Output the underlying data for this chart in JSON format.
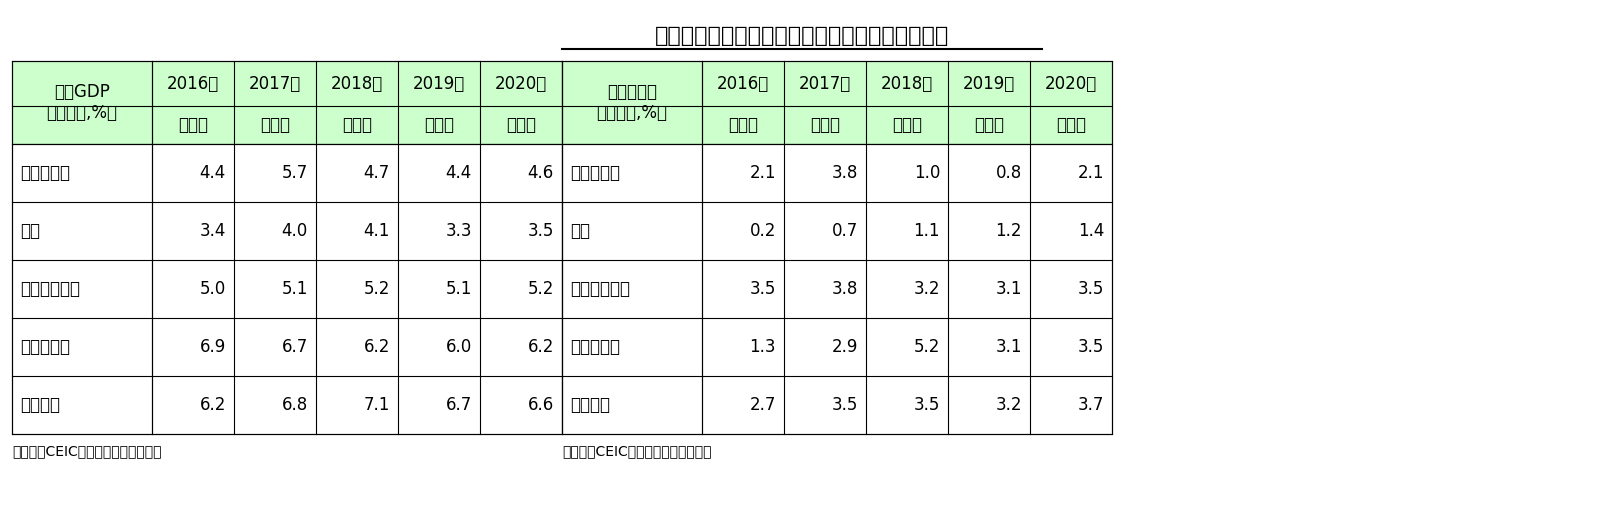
{
  "title": "東南アジア５カ国の成長率とインフレ率の見通し",
  "table1_header_col0": "実質GDP\n（前年比,%）",
  "table1_subheader": [
    "2016年",
    "2017年",
    "2018年",
    "2019年",
    "2020年"
  ],
  "table1_subheader2": [
    "（実）",
    "（実）",
    "（実）",
    "（予）",
    "（予）"
  ],
  "table1_rows": [
    [
      "マレーシア",
      "4.4",
      "5.7",
      "4.7",
      "4.4",
      "4.6"
    ],
    [
      "タイ",
      "3.4",
      "4.0",
      "4.1",
      "3.3",
      "3.5"
    ],
    [
      "インドネシア",
      "5.0",
      "5.1",
      "5.2",
      "5.1",
      "5.2"
    ],
    [
      "フィリピン",
      "6.9",
      "6.7",
      "6.2",
      "6.0",
      "6.2"
    ],
    [
      "ベトナム",
      "6.2",
      "6.8",
      "7.1",
      "6.7",
      "6.6"
    ]
  ],
  "table1_note": "（資料）CEIC、ニッセイ基礎研究所",
  "table2_header_col0": "消費者物価\n（前年比,%）",
  "table2_subheader": [
    "2016年",
    "2017年",
    "2018年",
    "2019年",
    "2020年"
  ],
  "table2_subheader2": [
    "（実）",
    "（実）",
    "（実）",
    "（予）",
    "（予）"
  ],
  "table2_rows": [
    [
      "マレーシア",
      "2.1",
      "3.8",
      "1.0",
      "0.8",
      "2.1"
    ],
    [
      "タイ",
      "0.2",
      "0.7",
      "1.1",
      "1.2",
      "1.4"
    ],
    [
      "インドネシア",
      "3.5",
      "3.8",
      "3.2",
      "3.1",
      "3.5"
    ],
    [
      "フィリピン",
      "1.3",
      "2.9",
      "5.2",
      "3.1",
      "3.5"
    ],
    [
      "ベトナム",
      "2.7",
      "3.5",
      "3.5",
      "3.2",
      "3.7"
    ]
  ],
  "table2_note": "（資料）CEIC、ニッセイ基礎研究所",
  "header_bg": "#ccffcc",
  "white_bg": "#ffffff",
  "border_color": "#000000",
  "title_fontsize": 16,
  "cell_fontsize": 12,
  "note_fontsize": 10
}
